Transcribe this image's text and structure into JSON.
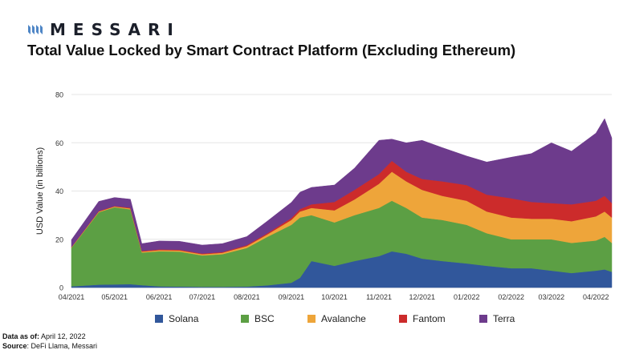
{
  "brand": {
    "name": "MESSARI"
  },
  "footer": {
    "data_as_of_label": "Data as of:",
    "data_as_of_value": "April 12, 2022",
    "source_label": "Source",
    "source_value": ": DeFi Llama, Messari"
  },
  "colors": {
    "Solana": "#31579b",
    "BSC": "#5c9f44",
    "Avalanche": "#eea53a",
    "Fantom": "#cc2b2b",
    "Terra": "#6d3b8c",
    "brand_logo": "#4f86c6"
  },
  "chart_data": {
    "type": "area",
    "stacked": true,
    "title": "Total Value Locked by Smart Contract Platform (Excluding Ethereum)",
    "xlabel": "",
    "ylabel": "USD Value (in billions)",
    "ylim": [
      0,
      80
    ],
    "yticks": [
      0,
      20,
      40,
      60,
      80
    ],
    "grid": true,
    "legend_position": "bottom",
    "x_tick_labels": [
      "04/2021",
      "05/2021",
      "06/2021",
      "07/2021",
      "08/2021",
      "09/2021",
      "10/2021",
      "11/2021",
      "12/2021",
      "01/2022",
      "02/2022",
      "03/2022",
      "04/2022"
    ],
    "x": [
      "2021-04-01",
      "2021-04-20",
      "2021-05-01",
      "2021-05-12",
      "2021-05-20",
      "2021-06-01",
      "2021-06-15",
      "2021-07-01",
      "2021-07-15",
      "2021-08-01",
      "2021-08-15",
      "2021-09-01",
      "2021-09-07",
      "2021-09-15",
      "2021-10-01",
      "2021-10-15",
      "2021-11-01",
      "2021-11-10",
      "2021-11-20",
      "2021-12-01",
      "2021-12-15",
      "2022-01-01",
      "2022-01-15",
      "2022-02-01",
      "2022-02-15",
      "2022-03-01",
      "2022-03-15",
      "2022-04-01",
      "2022-04-07",
      "2022-04-12"
    ],
    "series": [
      {
        "name": "Solana",
        "values": [
          0.5,
          1.2,
          1.3,
          1.4,
          1.0,
          0.5,
          0.4,
          0.3,
          0.3,
          0.4,
          0.9,
          2.0,
          4.0,
          11.0,
          9.0,
          11.0,
          13.0,
          15.0,
          14.0,
          12.0,
          11.0,
          10.0,
          9.0,
          8.0,
          8.0,
          7.0,
          6.0,
          7.0,
          7.5,
          6.5
        ]
      },
      {
        "name": "BSC",
        "values": [
          16.0,
          30.0,
          32.0,
          31.0,
          13.5,
          14.5,
          14.5,
          13.0,
          13.5,
          16.0,
          20.0,
          24.0,
          25.0,
          19.0,
          18.0,
          19.0,
          20.0,
          21.0,
          19.0,
          17.0,
          17.0,
          16.0,
          13.5,
          12.0,
          12.0,
          13.0,
          12.5,
          12.5,
          13.5,
          12.0
        ]
      },
      {
        "name": "Avalanche",
        "values": [
          0.2,
          0.3,
          0.3,
          0.4,
          0.4,
          0.5,
          0.5,
          0.5,
          0.6,
          0.8,
          1.0,
          2.0,
          2.5,
          3.0,
          5.0,
          6.5,
          10.0,
          12.0,
          11.0,
          11.5,
          10.0,
          10.0,
          9.0,
          9.0,
          8.5,
          8.5,
          9.0,
          10.0,
          10.5,
          10.5
        ]
      },
      {
        "name": "Fantom",
        "values": [
          0.1,
          0.2,
          0.2,
          0.3,
          0.3,
          0.3,
          0.3,
          0.3,
          0.3,
          0.4,
          0.5,
          0.8,
          1.0,
          1.5,
          3.5,
          4.0,
          4.0,
          4.5,
          4.0,
          4.5,
          6.0,
          6.5,
          7.0,
          8.0,
          7.0,
          6.5,
          7.0,
          6.5,
          6.5,
          6.0
        ]
      },
      {
        "name": "Terra",
        "values": [
          3.0,
          4.0,
          3.5,
          3.5,
          3.0,
          3.5,
          3.5,
          3.5,
          3.5,
          3.5,
          5.0,
          6.5,
          7.0,
          7.0,
          7.0,
          9.0,
          14.0,
          9.0,
          12.0,
          16.0,
          14.0,
          12.0,
          13.5,
          17.0,
          20.0,
          25.0,
          22.0,
          28.0,
          32.0,
          27.0
        ]
      }
    ]
  }
}
